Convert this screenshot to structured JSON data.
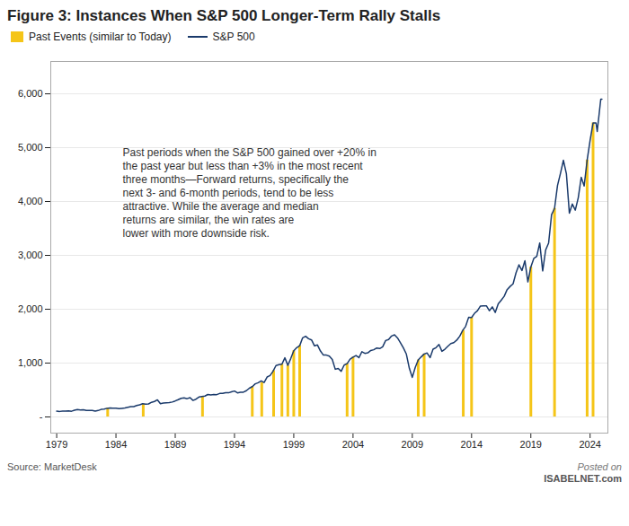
{
  "chart_data": {
    "type": "bar_line",
    "title": "Figure 3: Instances When S&P 500 Longer-Term Rally Stalls",
    "caption": "Source: MarketDesk",
    "annotations": [
      [
        "Past periods when the S&P 500 gained over +20% in",
        "the past year but less than +3% in the most recent",
        "three months—Forward returns, specifically the",
        "next 3- and 6-month periods, tend to be less",
        "attractive. While the average and median",
        "returns are similar, the win rates are",
        "lower with more downside risk."
      ],
      [
        "Posted on",
        "ISABELNET.com"
      ]
    ],
    "xlim": [
      1978.5,
      2025.5
    ],
    "xticks": [
      1979,
      1984,
      1989,
      1994,
      1999,
      2004,
      2009,
      2014,
      2019,
      2024
    ],
    "ylim": [
      -300,
      6600
    ],
    "yticks": [
      {
        "value": 0,
        "label": "-"
      },
      {
        "value": 1000,
        "label": "1,000"
      },
      {
        "value": 2000,
        "label": "2,000"
      },
      {
        "value": 3000,
        "label": "3,000"
      },
      {
        "value": 4000,
        "label": "4,000"
      },
      {
        "value": 5000,
        "label": "5,000"
      },
      {
        "value": 6000,
        "label": "6,000"
      }
    ],
    "grid": true,
    "legend": "upper left",
    "series": [
      {
        "name": "Past Events (similar to Today)",
        "type": "bar",
        "color": "#f5c518",
        "x": [
          1983.3,
          1986.3,
          1991.3,
          1995.5,
          1996.3,
          1997.3,
          1998.0,
          1998.5,
          1999.0,
          1999.5,
          2003.5,
          2004.0,
          2009.5,
          2010.0,
          2013.3,
          2014.0,
          2019.0,
          2021.0,
          2023.75,
          2024.25
        ],
        "values": [
          164,
          236,
          379,
          562,
          639,
          860,
          980,
          957,
          1229,
          1323,
          990,
          1111,
          1057,
          1169,
          1606,
          1845,
          2784,
          3871,
          4769,
          5460
        ]
      },
      {
        "name": "S&P 500",
        "type": "line",
        "color": "#1a3a6b",
        "x": [
          1979.0,
          1979.25,
          1979.5,
          1979.75,
          1980.0,
          1980.25,
          1980.5,
          1980.75,
          1981.0,
          1981.25,
          1981.5,
          1981.75,
          1982.0,
          1982.25,
          1982.5,
          1982.75,
          1983.0,
          1983.25,
          1983.5,
          1983.75,
          1984.0,
          1984.25,
          1984.5,
          1984.75,
          1985.0,
          1985.25,
          1985.5,
          1985.75,
          1986.0,
          1986.25,
          1986.5,
          1986.75,
          1987.0,
          1987.25,
          1987.5,
          1987.75,
          1988.0,
          1988.25,
          1988.5,
          1988.75,
          1989.0,
          1989.25,
          1989.5,
          1989.75,
          1990.0,
          1990.25,
          1990.5,
          1990.75,
          1991.0,
          1991.25,
          1991.5,
          1991.75,
          1992.0,
          1992.25,
          1992.5,
          1992.75,
          1993.0,
          1993.25,
          1993.5,
          1993.75,
          1994.0,
          1994.25,
          1994.5,
          1994.75,
          1995.0,
          1995.25,
          1995.5,
          1995.75,
          1996.0,
          1996.25,
          1996.5,
          1996.75,
          1997.0,
          1997.25,
          1997.5,
          1997.75,
          1998.0,
          1998.25,
          1998.5,
          1998.75,
          1999.0,
          1999.25,
          1999.5,
          1999.75,
          2000.0,
          2000.25,
          2000.5,
          2000.75,
          2001.0,
          2001.25,
          2001.5,
          2001.75,
          2002.0,
          2002.25,
          2002.5,
          2002.75,
          2003.0,
          2003.25,
          2003.5,
          2003.75,
          2004.0,
          2004.25,
          2004.5,
          2004.75,
          2005.0,
          2005.25,
          2005.5,
          2005.75,
          2006.0,
          2006.25,
          2006.5,
          2006.75,
          2007.0,
          2007.25,
          2007.5,
          2007.75,
          2008.0,
          2008.25,
          2008.5,
          2008.75,
          2009.0,
          2009.25,
          2009.5,
          2009.75,
          2010.0,
          2010.25,
          2010.5,
          2010.75,
          2011.0,
          2011.25,
          2011.5,
          2011.75,
          2012.0,
          2012.25,
          2012.5,
          2012.75,
          2013.0,
          2013.25,
          2013.5,
          2013.75,
          2014.0,
          2014.25,
          2014.5,
          2014.75,
          2015.0,
          2015.25,
          2015.5,
          2015.75,
          2016.0,
          2016.25,
          2016.5,
          2016.75,
          2017.0,
          2017.25,
          2017.5,
          2017.75,
          2018.0,
          2018.25,
          2018.5,
          2018.75,
          2019.0,
          2019.25,
          2019.5,
          2019.75,
          2020.0,
          2020.25,
          2020.5,
          2020.75,
          2021.0,
          2021.25,
          2021.5,
          2021.75,
          2022.0,
          2022.25,
          2022.5,
          2022.75,
          2023.0,
          2023.25,
          2023.5,
          2023.75,
          2024.0,
          2024.25,
          2024.5,
          2024.6,
          2024.75,
          2024.9,
          2025.0
        ],
        "values": [
          107,
          102,
          109,
          107,
          114,
          106,
          125,
          136,
          131,
          132,
          122,
          122,
          120,
          109,
          119,
          140,
          145,
          160,
          166,
          164,
          163,
          153,
          160,
          167,
          179,
          191,
          193,
          212,
          226,
          245,
          236,
          242,
          272,
          288,
          318,
          247,
          258,
          262,
          265,
          277,
          297,
          320,
          346,
          353,
          339,
          358,
          307,
          330,
          369,
          379,
          388,
          417,
          408,
          415,
          414,
          436,
          438,
          450,
          448,
          466,
          481,
          447,
          458,
          460,
          487,
          533,
          562,
          615,
          636,
          670,
          639,
          741,
          769,
          848,
          954,
          970,
          980,
          1098,
          957,
          1086,
          1229,
          1286,
          1323,
          1469,
          1498,
          1452,
          1430,
          1320,
          1336,
          1224,
          1148,
          1148,
          1130,
          1067,
          885,
          900,
          848,
          963,
          990,
          1072,
          1111,
          1141,
          1101,
          1212,
          1181,
          1191,
          1234,
          1248,
          1281,
          1270,
          1303,
          1418,
          1438,
          1503,
          1526,
          1468,
          1378,
          1280,
          1166,
          903,
          735,
          920,
          1057,
          1115,
          1169,
          1187,
          1101,
          1258,
          1286,
          1345,
          1218,
          1258,
          1312,
          1362,
          1379,
          1426,
          1498,
          1606,
          1682,
          1848,
          1845,
          1924,
          1973,
          2059,
          2063,
          2063,
          1972,
          2044,
          1940,
          2099,
          2168,
          2239,
          2364,
          2423,
          2470,
          2674,
          2824,
          2718,
          2901,
          2507,
          2784,
          2942,
          2980,
          3231,
          2711,
          3100,
          3230,
          3756,
          3871,
          4298,
          4523,
          4766,
          4516,
          3785,
          3955,
          3840,
          4070,
          4450,
          4289,
          4769,
          5137,
          5460,
          5460,
          5300,
          5600,
          5900,
          5900
        ]
      }
    ]
  }
}
